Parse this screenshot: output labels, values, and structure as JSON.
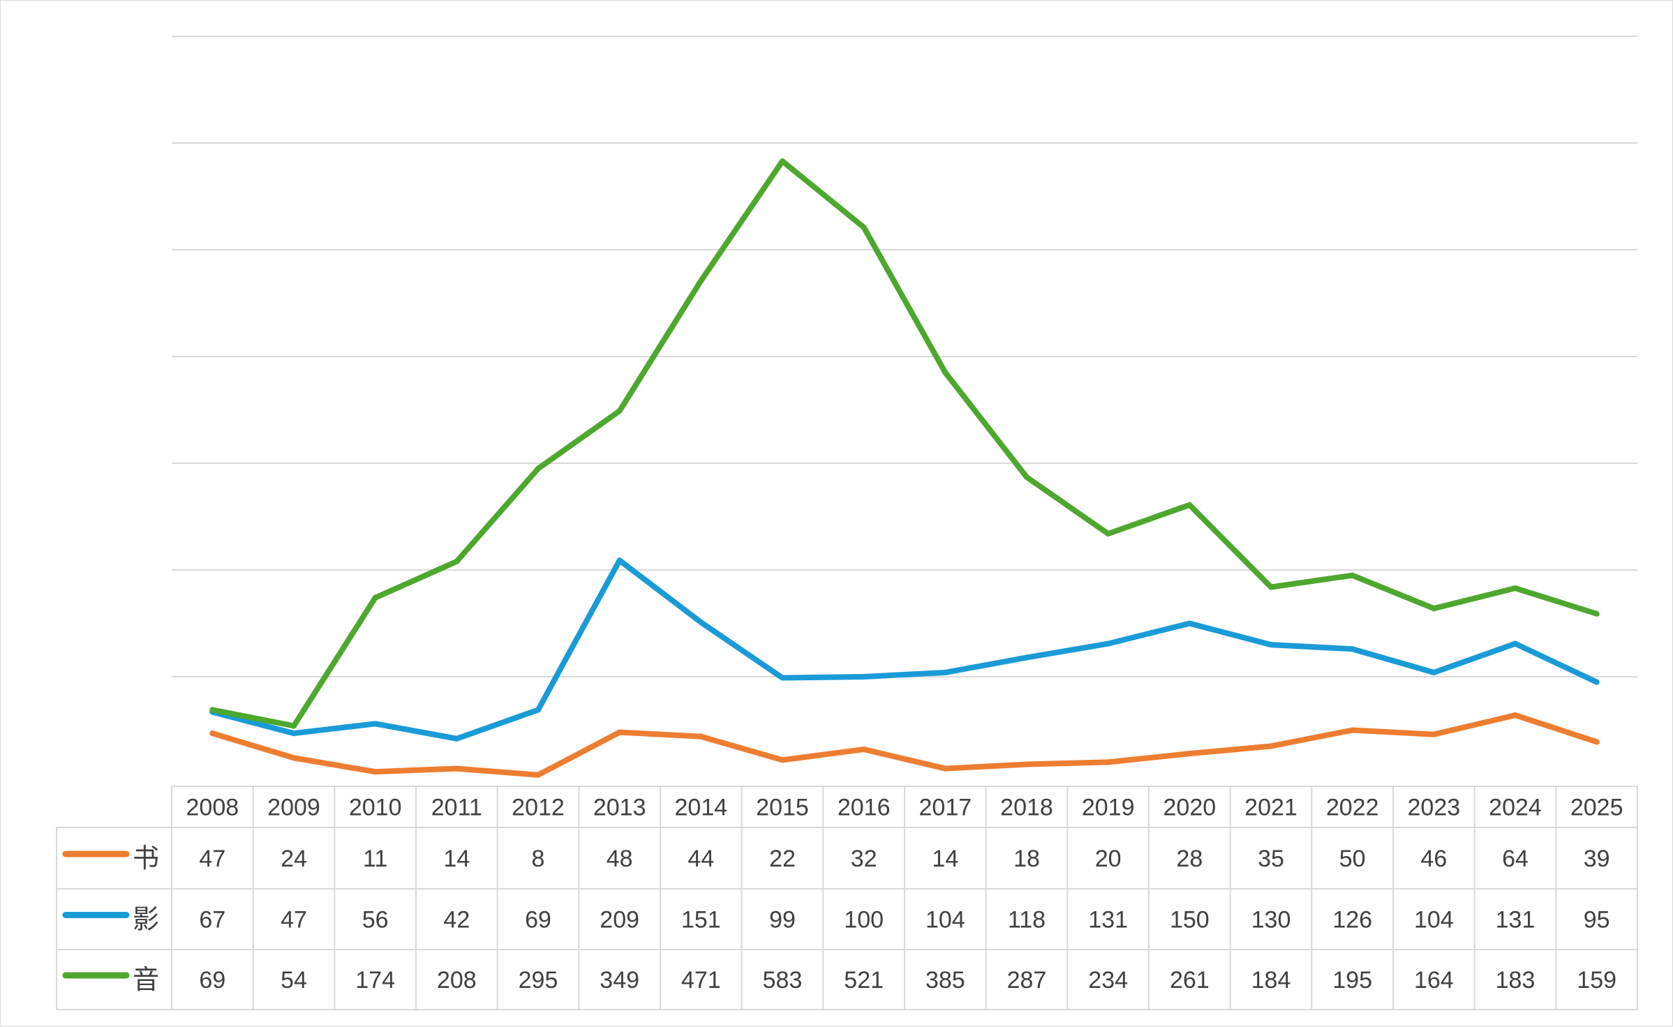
{
  "chart_data": {
    "type": "line",
    "title": "",
    "xlabel": "",
    "ylabel": "",
    "grid": true,
    "legend": "data-table",
    "ylim": [
      0,
      700
    ],
    "categories": [
      "2008",
      "2009",
      "2010",
      "2011",
      "2012",
      "2013",
      "2014",
      "2015",
      "2016",
      "2017",
      "2018",
      "2019",
      "2020",
      "2021",
      "2022",
      "2023",
      "2024",
      "2025"
    ],
    "series": [
      {
        "name": "书",
        "color": "#ED7D31",
        "values": [
          47,
          24,
          11,
          14,
          8,
          48,
          44,
          22,
          32,
          14,
          18,
          20,
          28,
          35,
          50,
          46,
          64,
          39
        ]
      },
      {
        "name": "影",
        "color": "#1A9BD7",
        "values": [
          67,
          47,
          56,
          42,
          69,
          209,
          151,
          99,
          100,
          104,
          118,
          131,
          150,
          130,
          126,
          104,
          131,
          95
        ]
      },
      {
        "name": "音",
        "color": "#4EA72E",
        "values": [
          69,
          54,
          174,
          208,
          295,
          349,
          471,
          583,
          521,
          385,
          287,
          234,
          261,
          184,
          195,
          164,
          183,
          159
        ]
      }
    ]
  }
}
